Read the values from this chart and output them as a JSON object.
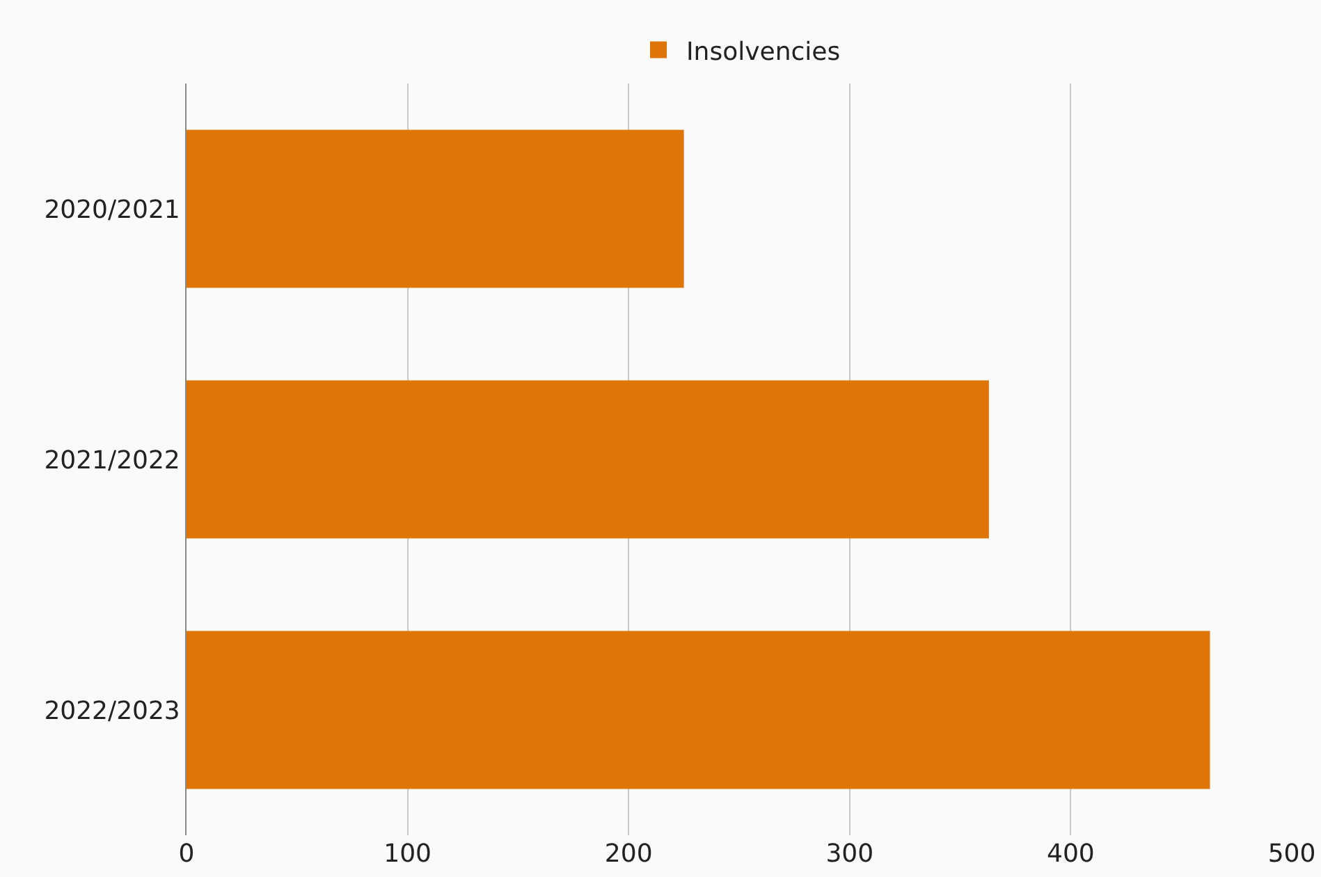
{
  "chart_data": {
    "type": "bar",
    "orientation": "horizontal",
    "categories": [
      "2020/2021",
      "2021/2022",
      "2022/2023"
    ],
    "series": [
      {
        "name": "Insolvencies",
        "color": "#e07507",
        "values": [
          225,
          363,
          463
        ]
      }
    ],
    "xlim": [
      0,
      500
    ],
    "xticks": [
      0,
      100,
      200,
      300,
      400,
      500
    ],
    "grid": "x",
    "legend": "top"
  }
}
